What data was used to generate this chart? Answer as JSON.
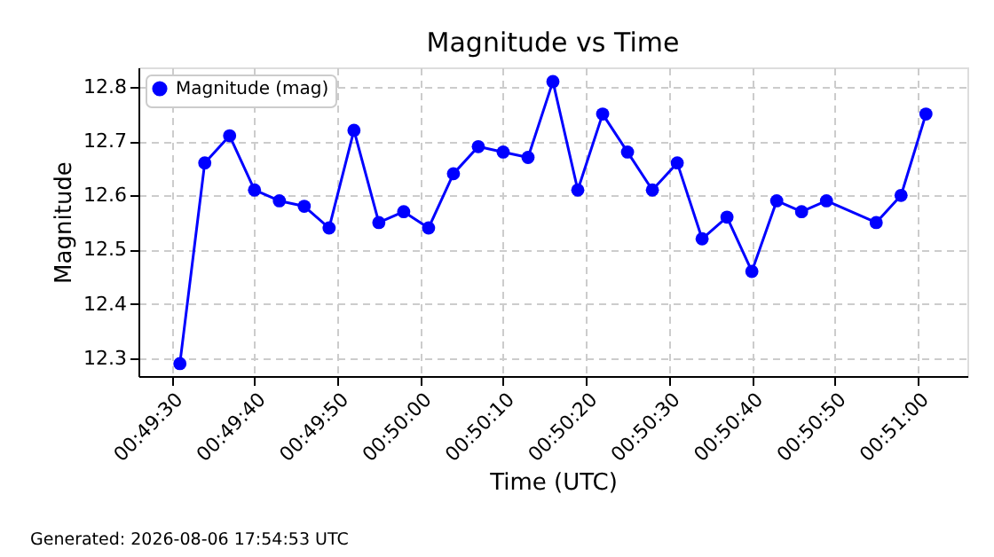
{
  "chart_data": {
    "type": "line",
    "title": "Magnitude vs Time",
    "xlabel": "Time (UTC)",
    "ylabel": "Magnitude",
    "x": [
      "2026-08-06T00:49:31",
      "2026-08-06T00:49:34",
      "2026-08-06T00:49:37",
      "2026-08-06T00:49:40",
      "2026-08-06T00:49:43",
      "2026-08-06T00:49:46",
      "2026-08-06T00:49:49",
      "2026-08-06T00:49:52",
      "2026-08-06T00:49:55",
      "2026-08-06T00:49:58",
      "2026-08-06T00:50:01",
      "2026-08-06T00:50:04",
      "2026-08-06T00:50:07",
      "2026-08-06T00:50:10",
      "2026-08-06T00:50:13",
      "2026-08-06T00:50:16",
      "2026-08-06T00:50:19",
      "2026-08-06T00:50:22",
      "2026-08-06T00:50:25",
      "2026-08-06T00:50:28",
      "2026-08-06T00:50:31",
      "2026-08-06T00:50:34",
      "2026-08-06T00:50:37",
      "2026-08-06T00:50:40",
      "2026-08-06T00:50:43",
      "2026-08-06T00:50:46",
      "2026-08-06T00:50:49",
      "2026-08-06T00:50:55",
      "2026-08-06T00:50:58",
      "2026-08-06T00:51:01"
    ],
    "series": [
      {
        "name": "Magnitude (mag)",
        "color": "#0000ff",
        "values": [
          12.29,
          12.66,
          12.71,
          12.61,
          12.59,
          12.58,
          12.54,
          12.72,
          12.55,
          12.57,
          12.54,
          12.64,
          12.69,
          12.68,
          12.67,
          12.81,
          12.61,
          12.75,
          12.68,
          12.61,
          12.66,
          12.52,
          12.56,
          12.46,
          12.59,
          12.57,
          12.59,
          12.55,
          12.6,
          12.75
        ]
      }
    ],
    "xlim": [
      "2026-08-06T00:49:26",
      "2026-08-06T00:51:06"
    ],
    "xticks": [
      {
        "value": "2026-08-06T00:49:30",
        "label": "00:49:30"
      },
      {
        "value": "2026-08-06T00:49:40",
        "label": "00:49:40"
      },
      {
        "value": "2026-08-06T00:49:50",
        "label": "00:49:50"
      },
      {
        "value": "2026-08-06T00:50:00",
        "label": "00:50:00"
      },
      {
        "value": "2026-08-06T00:50:10",
        "label": "00:50:10"
      },
      {
        "value": "2026-08-06T00:50:20",
        "label": "00:50:20"
      },
      {
        "value": "2026-08-06T00:50:30",
        "label": "00:50:30"
      },
      {
        "value": "2026-08-06T00:50:40",
        "label": "00:50:40"
      },
      {
        "value": "2026-08-06T00:50:50",
        "label": "00:50:50"
      },
      {
        "value": "2026-08-06T00:51:00",
        "label": "00:51:00"
      }
    ],
    "ylim": [
      12.267,
      12.836
    ],
    "yticks": [
      12.3,
      12.4,
      12.5,
      12.6,
      12.7,
      12.8
    ],
    "grid": true,
    "legend": "top left",
    "marker": "circle",
    "line_style": "solid",
    "annotations": [
      "Generated: 2026-08-06 17:54:53 UTC"
    ]
  }
}
